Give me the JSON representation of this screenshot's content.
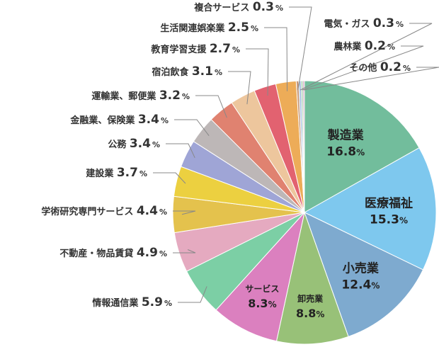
{
  "chart_data": {
    "type": "pie",
    "unit": "%",
    "slices": [
      {
        "label": "製造業",
        "value": 16.8,
        "color": "#72bd9c"
      },
      {
        "label": "医療福祉",
        "value": 15.3,
        "color": "#7ec8ee"
      },
      {
        "label": "小売業",
        "value": 12.4,
        "color": "#7eaacf"
      },
      {
        "label": "卸売業",
        "value": 8.8,
        "color": "#98c178"
      },
      {
        "label": "サービス",
        "value": 8.3,
        "color": "#db80bf"
      },
      {
        "label": "情報通信業",
        "value": 5.9,
        "color": "#7ccfa5"
      },
      {
        "label": "不動産・物品賃貸",
        "value": 4.9,
        "color": "#e5aac0"
      },
      {
        "label": "学術研究専門サービス",
        "value": 4.4,
        "color": "#e4c24d"
      },
      {
        "label": "建設業",
        "value": 3.7,
        "color": "#ecd040"
      },
      {
        "label": "公務",
        "value": 3.4,
        "color": "#9fa5d6"
      },
      {
        "label": "金融業、保険業",
        "value": 3.4,
        "color": "#bdb7b7"
      },
      {
        "label": "運輸業、郵便業",
        "value": 3.2,
        "color": "#e08270"
      },
      {
        "label": "宿泊飲食",
        "value": 3.1,
        "color": "#edc69d"
      },
      {
        "label": "教育学習支援",
        "value": 2.7,
        "color": "#e26270"
      },
      {
        "label": "生活関連娯楽業",
        "value": 2.5,
        "color": "#edac58"
      },
      {
        "label": "複合サービス",
        "value": 0.3,
        "color": "#c79878"
      },
      {
        "label": "電気・ガス",
        "value": 0.3,
        "color": "#a8c0e0"
      },
      {
        "label": "農林業",
        "value": 0.2,
        "color": "#8fc49a"
      },
      {
        "label": "その他",
        "value": 0.2,
        "color": "#d8a7c2"
      }
    ]
  }
}
